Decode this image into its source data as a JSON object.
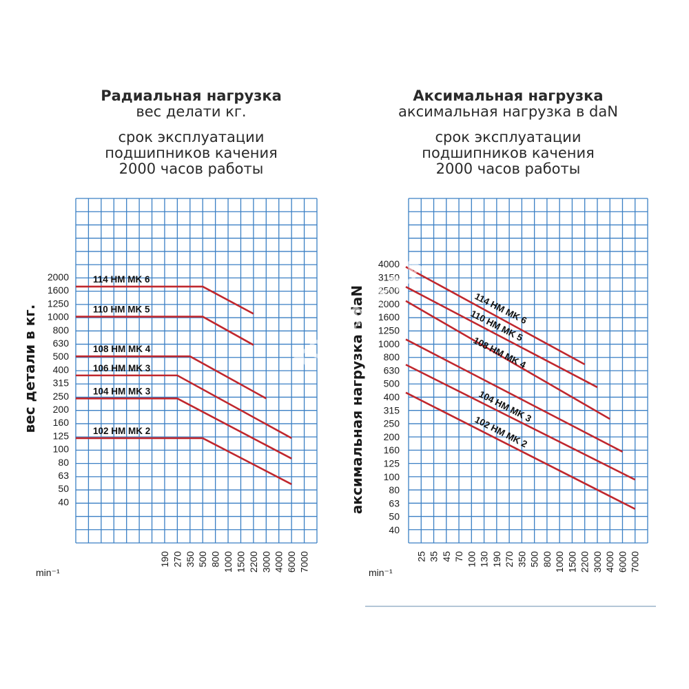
{
  "left_header": {
    "title": "Радиальная нагрузка",
    "subtitle": "вес делати кг.",
    "note_1": "срок эксплуатации",
    "note_2": "подшипников качения",
    "note_3": "2000 часов работы"
  },
  "right_header": {
    "title": "Аксимальная нагрузка",
    "subtitle": "аксимальная нагрузка в daN",
    "note_1": "срок эксплуатации",
    "note_2": "подшипников качения",
    "note_3": "2000 часов работы"
  },
  "watermark": "TOOLARENA",
  "colors": {
    "grid": "#3a7fc4",
    "line": "#c0272d",
    "background": "#ffffff"
  },
  "chart_data": [
    {
      "type": "line",
      "ylabel": "вес детали в кг.",
      "x_unit": "min⁻¹",
      "y_ticks": [
        "2000",
        "1600",
        "1250",
        "1000",
        "800",
        "630",
        "500",
        "400",
        "315",
        "250",
        "200",
        "160",
        "125",
        "100",
        "80",
        "63",
        "50",
        "40"
      ],
      "x_ticks": [
        "190",
        "270",
        "350",
        "500",
        "800",
        "1000",
        "1500",
        "2200",
        "3000",
        "4000",
        "6000",
        "7000"
      ],
      "scale": "log-log",
      "series": [
        {
          "name": "114 HM MK 6",
          "x": [
            "500",
            "2200"
          ],
          "y": [
            1700,
            1050
          ]
        },
        {
          "name": "110 HM MK 5",
          "x": [
            "500",
            "2200"
          ],
          "y": [
            1000,
            610
          ]
        },
        {
          "name": "108 HM MK 4",
          "x": [
            "350",
            "3000"
          ],
          "y": [
            500,
            240
          ]
        },
        {
          "name": "106 HM MK 3",
          "x": [
            "270",
            "6000"
          ],
          "y": [
            360,
            120
          ]
        },
        {
          "name": "104 HM MK 3",
          "x": [
            "270",
            "6000"
          ],
          "y": [
            240,
            85
          ]
        },
        {
          "name": "102 HM MK 2",
          "x": [
            "500",
            "6000"
          ],
          "y": [
            120,
            54
          ]
        }
      ]
    },
    {
      "type": "line",
      "ylabel": "аксимальная нагрузка в daN",
      "x_unit": "min⁻¹",
      "y_ticks": [
        "4000",
        "3150",
        "2500",
        "2000",
        "1600",
        "1250",
        "1000",
        "800",
        "630",
        "500",
        "400",
        "315",
        "250",
        "200",
        "160",
        "125",
        "100",
        "80",
        "63",
        "50",
        "40"
      ],
      "x_ticks": [
        "25",
        "35",
        "45",
        "70",
        "100",
        "130",
        "190",
        "270",
        "350",
        "500",
        "800",
        "1000",
        "1500",
        "2200",
        "3000",
        "4000",
        "6000",
        "7000"
      ],
      "scale": "log-log",
      "series": [
        {
          "name": "114 HM MK 6",
          "x": [
            "25",
            "2200"
          ],
          "y": [
            3700,
            700
          ]
        },
        {
          "name": "110 HM MK 5",
          "x": [
            "25",
            "3000"
          ],
          "y": [
            2600,
            470
          ]
        },
        {
          "name": "108 HM MK 4",
          "x": [
            "25",
            "4000"
          ],
          "y": [
            2050,
            270
          ]
        },
        {
          "name": "104 HM MK 3",
          "x": [
            "25",
            "6000"
          ],
          "y": [
            1050,
            155
          ]
        },
        {
          "name": "102 HM MK 2",
          "x": [
            "25",
            "7000"
          ],
          "y": [
            680,
            95
          ]
        },
        {
          "name": "",
          "x": [
            "25",
            "7000"
          ],
          "y": [
            420,
            57
          ]
        }
      ]
    }
  ]
}
